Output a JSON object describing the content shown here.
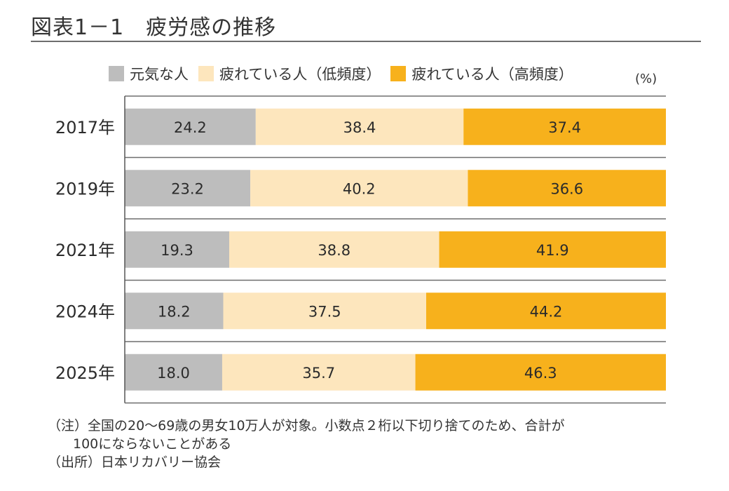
{
  "title": "図表1－1　疲労感の推移",
  "unit_label": "(%)",
  "chart_data": {
    "type": "bar",
    "orientation": "horizontal",
    "stacked": true,
    "title": "図表1－1　疲労感の推移",
    "xlabel": "",
    "ylabel": "",
    "xlim": [
      0,
      100
    ],
    "unit": "%",
    "legend_position": "top",
    "categories": [
      "2017年",
      "2019年",
      "2021年",
      "2024年",
      "2025年"
    ],
    "series": [
      {
        "name": "元気な人",
        "color": "#bdbdbd",
        "values": [
          24.2,
          23.2,
          19.3,
          18.2,
          18.0
        ]
      },
      {
        "name": "疲れている人（低頻度）",
        "color": "#fde6bd",
        "values": [
          38.4,
          40.2,
          38.8,
          37.5,
          35.7
        ]
      },
      {
        "name": "疲れている人（高頻度）",
        "color": "#f7b11c",
        "values": [
          37.4,
          36.6,
          41.9,
          44.2,
          46.3
        ]
      }
    ],
    "data_labels": [
      [
        "24.2",
        "38.4",
        "37.4"
      ],
      [
        "23.2",
        "40.2",
        "36.6"
      ],
      [
        "19.3",
        "38.8",
        "41.9"
      ],
      [
        "18.2",
        "37.5",
        "44.2"
      ],
      [
        "18.0",
        "35.7",
        "46.3"
      ]
    ]
  },
  "notes": {
    "note_line1": "（注）全国の20～69歳の男女10万人が対象。小数点２桁以下切り捨てのため、合計が",
    "note_line2": "100にならないことがある",
    "source": "（出所）日本リカバリー協会"
  }
}
